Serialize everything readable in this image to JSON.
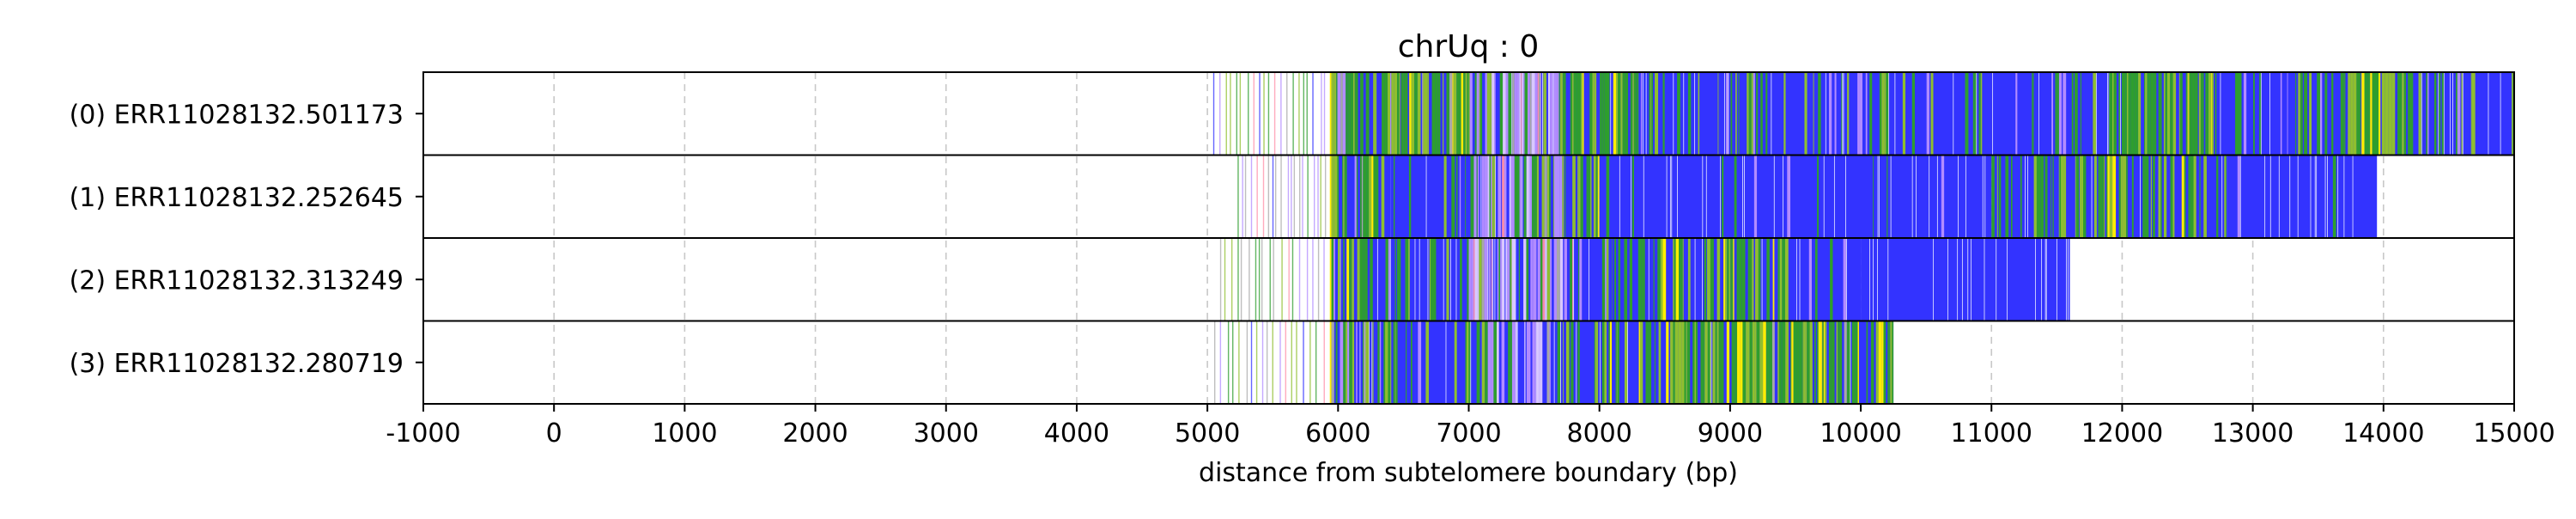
{
  "chart_data": {
    "type": "heatmap",
    "title": "chrUq : 0",
    "xlabel": "distance from subtelomere boundary (bp)",
    "ylabel": "",
    "xlim": [
      -1000,
      15000
    ],
    "xticks": [
      -1000,
      0,
      1000,
      2000,
      3000,
      4000,
      5000,
      6000,
      7000,
      8000,
      9000,
      10000,
      11000,
      12000,
      13000,
      14000,
      15000
    ],
    "xtick_labels": [
      "-1000",
      "0",
      "1000",
      "2000",
      "3000",
      "4000",
      "5000",
      "6000",
      "7000",
      "8000",
      "9000",
      "10000",
      "11000",
      "12000",
      "13000",
      "14000",
      "15000"
    ],
    "grid": "vertical dashed",
    "colors": {
      "blue": "#3333ff",
      "green": "#2e9e2e",
      "olive": "#8fbf2f",
      "yellow": "#ffee00",
      "violet": "#b28cff",
      "light_violet": "#d9c8ff",
      "gray": "#a8a8a8",
      "pink": "#ff8fa8",
      "background": "#ffffff",
      "grid": "#c8c8c8"
    },
    "rows": [
      {
        "label": "(0) ERR11028132.501173",
        "sparse_range": [
          5000,
          5950
        ],
        "dense_start": 5950,
        "read_end": 15000,
        "regions": [
          {
            "start": 5950,
            "end": 6500,
            "mix": "mixed"
          },
          {
            "start": 6500,
            "end": 7000,
            "mix": "green_heavy"
          },
          {
            "start": 7000,
            "end": 7700,
            "mix": "light_mixed"
          },
          {
            "start": 7700,
            "end": 8300,
            "mix": "green_heavy"
          },
          {
            "start": 8300,
            "end": 11900,
            "mix": "blue_heavy"
          },
          {
            "start": 11900,
            "end": 12700,
            "mix": "green_heavy"
          },
          {
            "start": 12700,
            "end": 13700,
            "mix": "blue_heavy"
          },
          {
            "start": 13700,
            "end": 14300,
            "mix": "green_heavy"
          },
          {
            "start": 14300,
            "end": 15000,
            "mix": "blue_heavy"
          }
        ]
      },
      {
        "label": "(1) ERR11028132.252645",
        "sparse_range": [
          5200,
          5950
        ],
        "dense_start": 5950,
        "read_end": 13950,
        "regions": [
          {
            "start": 5950,
            "end": 6400,
            "mix": "mixed"
          },
          {
            "start": 6400,
            "end": 7100,
            "mix": "blue_heavy"
          },
          {
            "start": 7100,
            "end": 7600,
            "mix": "light_mixed"
          },
          {
            "start": 7600,
            "end": 8000,
            "mix": "mixed"
          },
          {
            "start": 8000,
            "end": 11000,
            "mix": "blue_pure"
          },
          {
            "start": 11000,
            "end": 12800,
            "mix": "blue_green"
          },
          {
            "start": 12800,
            "end": 13950,
            "mix": "blue_pure"
          }
        ]
      },
      {
        "label": "(2) ERR11028132.313249",
        "sparse_range": [
          5050,
          5950
        ],
        "dense_start": 5950,
        "read_end": 11600,
        "regions": [
          {
            "start": 5950,
            "end": 6300,
            "mix": "mixed"
          },
          {
            "start": 6300,
            "end": 7000,
            "mix": "blue_heavy"
          },
          {
            "start": 7000,
            "end": 7800,
            "mix": "light_mixed"
          },
          {
            "start": 7800,
            "end": 8100,
            "mix": "blue_heavy"
          },
          {
            "start": 8100,
            "end": 9500,
            "mix": "blue_green"
          },
          {
            "start": 9500,
            "end": 10000,
            "mix": "blue_heavy"
          },
          {
            "start": 10000,
            "end": 11600,
            "mix": "blue_pure"
          }
        ]
      },
      {
        "label": "(3) ERR11028132.280719",
        "sparse_range": [
          5000,
          5950
        ],
        "dense_start": 5950,
        "read_end": 10250,
        "regions": [
          {
            "start": 5950,
            "end": 6400,
            "mix": "mixed"
          },
          {
            "start": 6400,
            "end": 7100,
            "mix": "blue_heavy"
          },
          {
            "start": 7100,
            "end": 7700,
            "mix": "light_mixed"
          },
          {
            "start": 7700,
            "end": 8800,
            "mix": "blue_green"
          },
          {
            "start": 8800,
            "end": 10250,
            "mix": "green_heavy"
          }
        ]
      }
    ]
  }
}
